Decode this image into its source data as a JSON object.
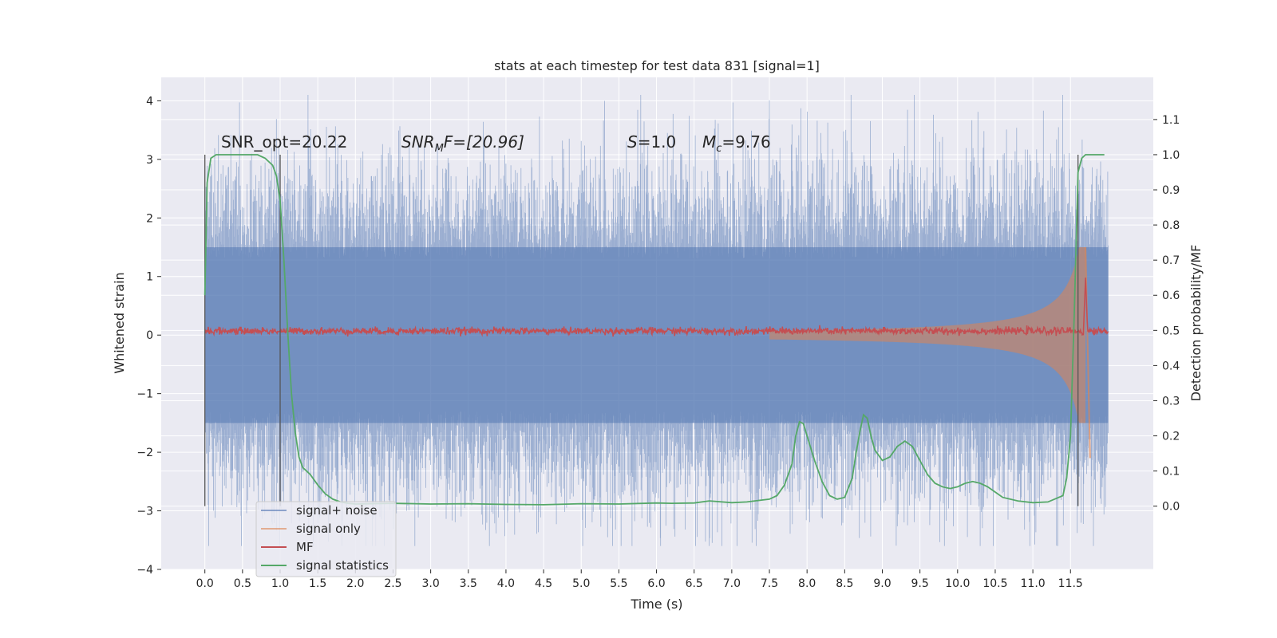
{
  "chart_data": {
    "type": "line",
    "title": "stats at each timestep for test data 831 [signal=1]",
    "xlabel": "Time (s)",
    "ylabel": "Whitened strain",
    "y2label": "Detection probability/MF",
    "xlim": [
      -0.58,
      12.6
    ],
    "ylim": [
      -4.0,
      4.4
    ],
    "y2lim": [
      -0.18,
      1.22
    ],
    "x_ticks": [
      "0.0",
      "0.5",
      "1.0",
      "1.5",
      "2.0",
      "2.5",
      "3.0",
      "3.5",
      "4.0",
      "4.5",
      "5.0",
      "5.5",
      "6.0",
      "6.5",
      "7.0",
      "7.5",
      "8.0",
      "8.5",
      "9.0",
      "9.5",
      "10.0",
      "10.5",
      "11.0",
      "11.5"
    ],
    "y_ticks": [
      "4",
      "3",
      "2",
      "1",
      "0",
      "−1",
      "−2",
      "−3",
      "−4"
    ],
    "y2_ticks": [
      "1.1",
      "1.0",
      "0.9",
      "0.8",
      "0.7",
      "0.6",
      "0.5",
      "0.4",
      "0.3",
      "0.2",
      "0.1",
      "0.0"
    ],
    "grid": true,
    "legend_position": "lower-left",
    "colors": {
      "background": "#eaeaf2",
      "grid": "#ffffff",
      "signal_noise": "#4c72b0",
      "signal_only": "#dd8452",
      "mf": "#c44e52",
      "statistics": "#55a868",
      "marker": "#555555"
    },
    "annotations": {
      "snr_opt": "SNR_opt=20.22",
      "snr_mf_name": "SNR",
      "snr_mf_sub": "M",
      "snr_mf_rest": "F=[20.96]",
      "s_name": "S",
      "s_rest": "=1.0",
      "mc_name": "M",
      "mc_sub": "c",
      "mc_rest": "=9.76"
    },
    "vertical_markers": [
      0.0,
      1.0,
      11.6
    ],
    "series": [
      {
        "name": "signal+ noise",
        "x_range": [
          0.0,
          12.0
        ],
        "amplitude_1sigma": 0.75,
        "peak_range": [
          -3.6,
          4.1
        ]
      },
      {
        "name": "signal only",
        "type": "chirp",
        "x_range": [
          7.5,
          11.7
        ],
        "peak_amplitude": 1.5,
        "merger_time": 11.7
      },
      {
        "name": "MF",
        "x_range": [
          0.0,
          12.0
        ],
        "baseline": 0.07,
        "spike": {
          "x": 11.7,
          "y": 0.98
        }
      },
      {
        "name": "signal statistics",
        "axis": "right",
        "x": [
          0.0,
          0.03,
          0.08,
          0.15,
          0.22,
          0.3,
          0.4,
          0.5,
          0.6,
          0.7,
          0.8,
          0.9,
          0.95,
          1.0,
          1.05,
          1.1,
          1.15,
          1.2,
          1.25,
          1.3,
          1.4,
          1.5,
          1.6,
          1.7,
          1.8,
          1.9,
          2.0,
          2.2,
          2.5,
          3.0,
          3.5,
          4.0,
          4.5,
          5.0,
          5.5,
          6.0,
          6.2,
          6.5,
          6.7,
          7.0,
          7.2,
          7.5,
          7.6,
          7.7,
          7.8,
          7.85,
          7.9,
          7.95,
          8.0,
          8.1,
          8.2,
          8.3,
          8.4,
          8.5,
          8.6,
          8.65,
          8.7,
          8.75,
          8.8,
          8.85,
          8.9,
          9.0,
          9.1,
          9.2,
          9.3,
          9.4,
          9.5,
          9.6,
          9.7,
          9.8,
          9.9,
          10.0,
          10.1,
          10.2,
          10.3,
          10.4,
          10.5,
          10.6,
          10.7,
          10.8,
          11.0,
          11.2,
          11.4,
          11.45,
          11.5,
          11.55,
          11.6,
          11.65,
          11.7,
          11.75,
          11.8,
          11.85,
          11.9,
          11.95
        ],
        "values": [
          0.6,
          0.92,
          0.99,
          1.0,
          1.0,
          1.0,
          1.0,
          1.0,
          1.0,
          1.0,
          0.99,
          0.97,
          0.94,
          0.87,
          0.7,
          0.5,
          0.32,
          0.21,
          0.14,
          0.11,
          0.09,
          0.06,
          0.035,
          0.02,
          0.012,
          0.008,
          0.006,
          0.007,
          0.008,
          0.006,
          0.007,
          0.005,
          0.004,
          0.007,
          0.006,
          0.009,
          0.008,
          0.009,
          0.015,
          0.01,
          0.012,
          0.02,
          0.03,
          0.06,
          0.12,
          0.2,
          0.24,
          0.235,
          0.2,
          0.13,
          0.07,
          0.03,
          0.02,
          0.025,
          0.08,
          0.15,
          0.21,
          0.26,
          0.25,
          0.2,
          0.16,
          0.13,
          0.14,
          0.17,
          0.185,
          0.17,
          0.13,
          0.09,
          0.065,
          0.055,
          0.05,
          0.055,
          0.065,
          0.07,
          0.065,
          0.055,
          0.04,
          0.025,
          0.02,
          0.015,
          0.01,
          0.012,
          0.03,
          0.08,
          0.2,
          0.55,
          0.95,
          0.99,
          1.0,
          1.0,
          1.0,
          1.0,
          1.0,
          1.0
        ]
      }
    ]
  }
}
